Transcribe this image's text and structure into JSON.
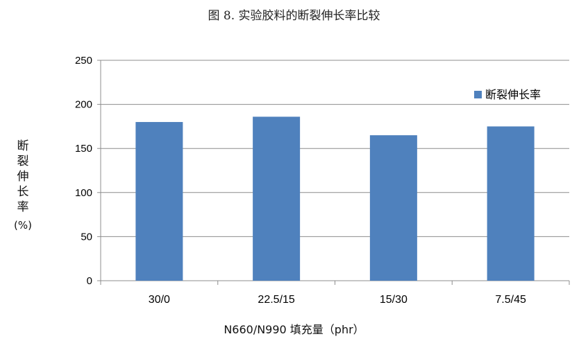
{
  "chart_data": {
    "type": "bar",
    "title": "图 8. 实验胶料的断裂伸长率比较",
    "xlabel": "N660/N990 填充量（phr）",
    "ylabel": "断裂伸长率",
    "ylabel_unit": "(%)",
    "categories": [
      "30/0",
      "22.5/15",
      "15/30",
      "7.5/45"
    ],
    "series": [
      {
        "name": "断裂伸长率",
        "values": [
          180,
          186,
          165,
          175
        ],
        "color": "#4F81BD"
      }
    ],
    "ylim": [
      0,
      250
    ],
    "yticks": [
      0,
      50,
      100,
      150,
      200,
      250
    ],
    "grid": true,
    "legend_position": "right"
  }
}
